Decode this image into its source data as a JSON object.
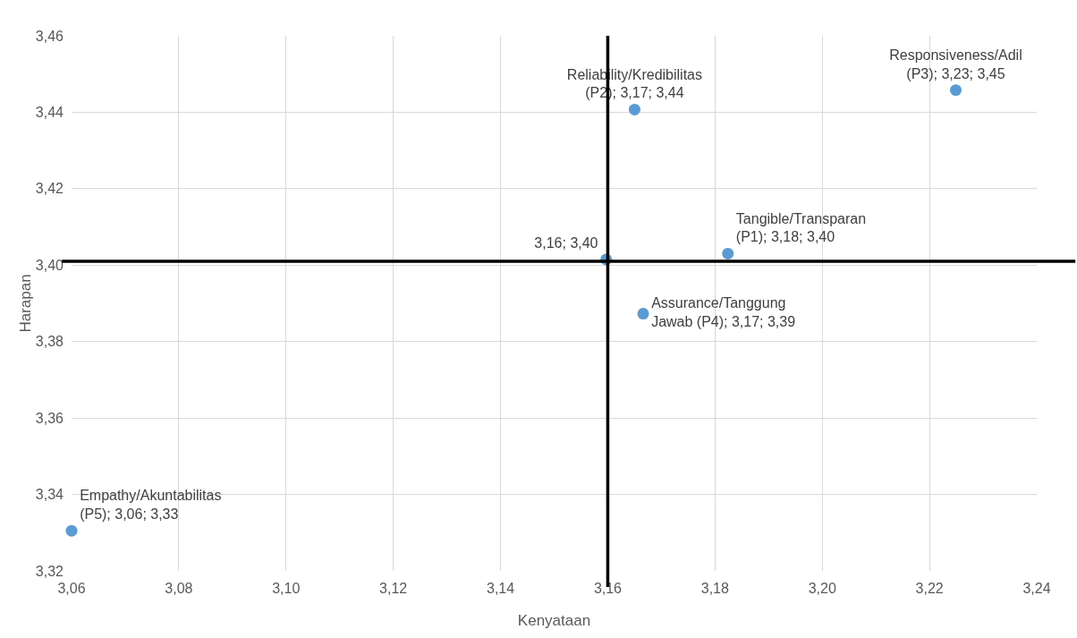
{
  "chart_data": {
    "type": "scatter",
    "xlabel": "Kenyataan",
    "ylabel": "Harapan",
    "x": [
      3.1824,
      3.165,
      3.2249,
      3.1666,
      3.06,
      3.1597
    ],
    "values": [
      3.403,
      3.4407,
      3.4458,
      3.3873,
      3.3305,
      3.4015
    ],
    "value_labels": [
      "Tangible/Transparan\n(P1); 3,18; 3,40",
      "Reliability/Kredibilitas\n(P2); 3,17; 3,44",
      "Responsiveness/Adil\n(P3); 3,23; 3,45",
      "Assurance/Tanggung\nJawab (P4); 3,17; 3,39",
      "Empathy/Akuntabilitas\n(P5); 3,06; 3,33",
      "3,16; 3,40"
    ],
    "color": "#5b9bd5",
    "marker": "circle",
    "xlim": [
      3.06,
      3.24
    ],
    "xticks": [
      {
        "value": 3.06,
        "label": "3,06"
      },
      {
        "value": 3.08,
        "label": "3,08"
      },
      {
        "value": 3.1,
        "label": "3,10"
      },
      {
        "value": 3.12,
        "label": "3,12"
      },
      {
        "value": 3.14,
        "label": "3,14"
      },
      {
        "value": 3.16,
        "label": "3,16"
      },
      {
        "value": 3.18,
        "label": "3,18"
      },
      {
        "value": 3.2,
        "label": "3,20"
      },
      {
        "value": 3.22,
        "label": "3,22"
      },
      {
        "value": 3.24,
        "label": "3,24"
      }
    ],
    "ylim": [
      3.32,
      3.46
    ],
    "yticks": [
      {
        "value": 3.32,
        "label": "3,32"
      },
      {
        "value": 3.34,
        "label": "3,34"
      },
      {
        "value": 3.36,
        "label": "3,36"
      },
      {
        "value": 3.38,
        "label": "3,38"
      },
      {
        "value": 3.4,
        "label": "3,40"
      },
      {
        "value": 3.42,
        "label": "3,42"
      },
      {
        "value": 3.44,
        "label": "3,44"
      },
      {
        "value": 3.46,
        "label": "3,46"
      }
    ],
    "grid": true,
    "ref_lines": [
      {
        "axis": "x",
        "value": 3.16,
        "color": "#000000"
      },
      {
        "axis": "y",
        "value": 3.401,
        "color": "#000000"
      }
    ]
  }
}
